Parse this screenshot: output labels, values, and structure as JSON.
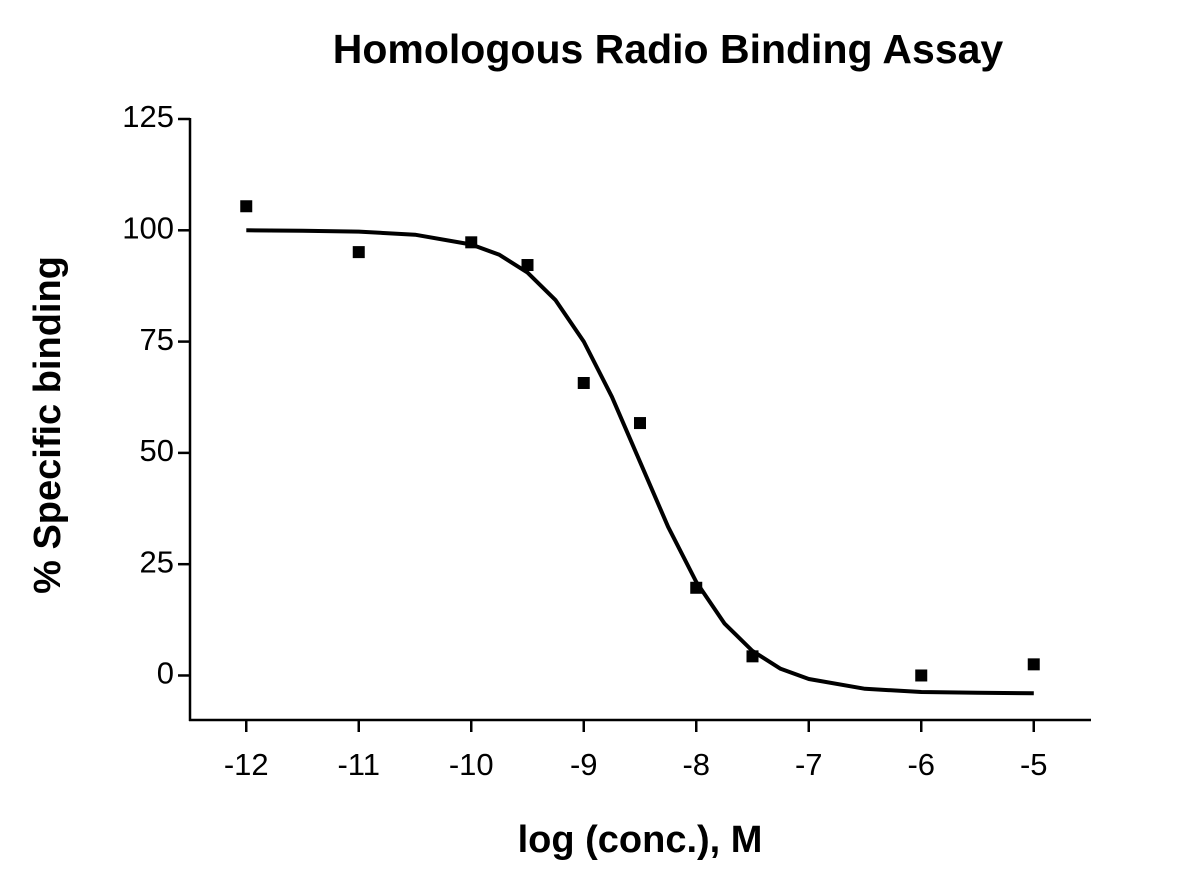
{
  "chart_data": {
    "type": "scatter",
    "title": "Homologous Radio Binding Assay",
    "x_label": "log (conc.), M",
    "y_label": "% Specific binding",
    "xlim": [
      -12.5,
      -4.5
    ],
    "xticks": [
      -12,
      -11,
      -10,
      -9,
      -8,
      -7,
      -6,
      -5
    ],
    "ylim": [
      -10,
      125
    ],
    "yticks": [
      0,
      25,
      50,
      75,
      100,
      125
    ],
    "grid": false,
    "series": [
      {
        "kind": "points",
        "color": "#000000",
        "x": [
          -12,
          -11,
          -10,
          -9.5,
          -9,
          -8.5,
          -8,
          -7.5,
          -6,
          -5
        ],
        "values": [
          105.4,
          95.1,
          97.3,
          92.2,
          65.7,
          56.7,
          19.7,
          4.3,
          0,
          2.5
        ]
      },
      {
        "kind": "line",
        "color": "#000000",
        "x": [
          -12,
          -11.5,
          -11,
          -10.5,
          -10,
          -9.75,
          -9.5,
          -9.25,
          -9,
          -8.75,
          -8.5,
          -8.25,
          -8,
          -7.75,
          -7.5,
          -7.25,
          -7,
          -6.5,
          -6,
          -5.5,
          -5
        ],
        "values": [
          100.0,
          99.9,
          99.7,
          99.0,
          96.8,
          94.5,
          90.5,
          84.3,
          75.0,
          62.6,
          48.0,
          33.4,
          21.0,
          11.7,
          5.5,
          1.5,
          -0.8,
          -3.0,
          -3.7,
          -3.9,
          -4.0
        ]
      }
    ]
  }
}
